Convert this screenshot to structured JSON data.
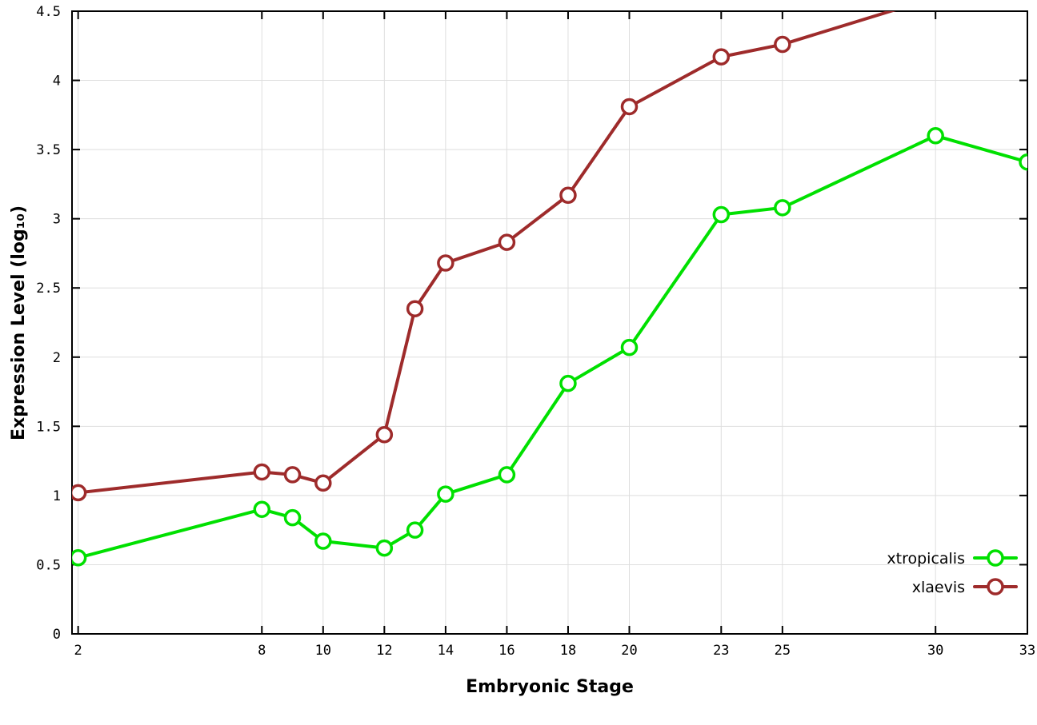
{
  "chart_data": {
    "type": "line",
    "title": "",
    "xlabel": "Embryonic Stage",
    "ylabel": "Expression Level (log₁₀)",
    "xlim": [
      1.8,
      33
    ],
    "ylim": [
      0,
      4.5
    ],
    "x_ticks": [
      2,
      8,
      10,
      12,
      14,
      16,
      18,
      20,
      23,
      25,
      30,
      33
    ],
    "y_ticks": [
      0,
      0.5,
      1,
      1.5,
      2,
      2.5,
      3,
      3.5,
      4,
      4.5
    ],
    "grid": true,
    "legend_position": "inside-bottom-right",
    "marker": "open-circle",
    "series": [
      {
        "name": "xtropicalis",
        "color": "#00e000",
        "x": [
          2,
          8,
          9,
          10,
          12,
          13,
          14,
          16,
          18,
          20,
          23,
          25,
          30,
          33
        ],
        "y": [
          0.55,
          0.9,
          0.84,
          0.67,
          0.62,
          0.75,
          1.01,
          1.15,
          1.81,
          2.07,
          3.03,
          3.08,
          3.6,
          3.41
        ]
      },
      {
        "name": "xlaevis",
        "color": "#9e2b2b",
        "x": [
          2,
          8,
          9,
          10,
          12,
          13,
          14,
          16,
          18,
          20,
          23,
          25,
          30
        ],
        "y": [
          1.02,
          1.17,
          1.15,
          1.09,
          1.44,
          2.35,
          2.68,
          2.83,
          3.17,
          3.81,
          4.17,
          4.26,
          4.6
        ]
      }
    ]
  },
  "legend": {
    "items": [
      {
        "label": "xtropicalis"
      },
      {
        "label": "xlaevis"
      }
    ]
  }
}
